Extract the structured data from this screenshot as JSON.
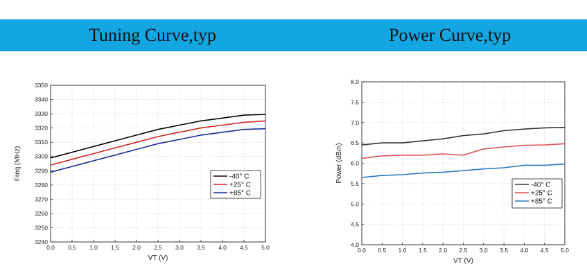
{
  "header": {
    "left_title": "Tuning Curve,typ",
    "right_title": "Power Curve,typ"
  },
  "chart_data": [
    {
      "type": "line",
      "title": "Tuning Curve,typ",
      "xlabel": "VT (V)",
      "ylabel": "Freq (MHz)",
      "xlim": [
        0.0,
        5.0
      ],
      "ylim": [
        3240,
        3350
      ],
      "xticks": [
        "0.0",
        "0.5",
        "1.0",
        "1.5",
        "2.0",
        "2.5",
        "3.0",
        "3.5",
        "4.0",
        "4.5",
        "5.0"
      ],
      "yticks": [
        "3240",
        "3250",
        "3260",
        "3270",
        "3280",
        "3290",
        "3300",
        "3310",
        "3320",
        "3330",
        "3340",
        "3350"
      ],
      "grid": true,
      "legend_position": "right",
      "x": [
        0.0,
        0.5,
        1.0,
        1.5,
        2.0,
        2.5,
        3.0,
        3.5,
        4.0,
        4.5,
        5.0
      ],
      "series": [
        {
          "name": "-40° C",
          "color": "#000000",
          "values": [
            3299,
            3303,
            3307,
            3311,
            3315,
            3319,
            3322,
            3325,
            3327,
            3329,
            3329.5
          ]
        },
        {
          "name": "+25° C",
          "color": "#d42424",
          "values": [
            3294,
            3298,
            3302,
            3306,
            3310,
            3314,
            3317,
            3320,
            3322,
            3324,
            3325
          ]
        },
        {
          "name": "+85° C",
          "color": "#1a2a9c",
          "values": [
            3289,
            3293,
            3297,
            3301,
            3305,
            3309,
            3312,
            3315,
            3317,
            3319,
            3319.5
          ]
        }
      ]
    },
    {
      "type": "line",
      "title": "Power Curve,typ",
      "xlabel": "VT (V)",
      "ylabel": "Power (dBm)",
      "xlim": [
        0.0,
        5.0
      ],
      "ylim": [
        4.0,
        8.0
      ],
      "xticks": [
        "0.0",
        "0.5",
        "1.0",
        "1.5",
        "2.0",
        "2.5",
        "3.0",
        "3.5",
        "4.0",
        "4.5",
        "5.0"
      ],
      "yticks": [
        "4.0",
        "4.5",
        "5.0",
        "5.5",
        "6.0",
        "6.5",
        "7.0",
        "7.5",
        "8.0"
      ],
      "grid": true,
      "legend_position": "bottom-right",
      "x": [
        0.0,
        0.5,
        1.0,
        1.5,
        2.0,
        2.5,
        3.0,
        3.5,
        4.0,
        4.5,
        5.0
      ],
      "series": [
        {
          "name": "-40° C",
          "color": "#333333",
          "values": [
            6.45,
            6.5,
            6.5,
            6.55,
            6.6,
            6.68,
            6.72,
            6.8,
            6.84,
            6.87,
            6.88
          ]
        },
        {
          "name": "+25° C",
          "color": "#e05050",
          "values": [
            6.12,
            6.18,
            6.2,
            6.2,
            6.23,
            6.2,
            6.35,
            6.4,
            6.44,
            6.45,
            6.48
          ]
        },
        {
          "name": "+85° C",
          "color": "#2a78c2",
          "values": [
            5.65,
            5.7,
            5.72,
            5.76,
            5.78,
            5.82,
            5.86,
            5.89,
            5.95,
            5.95,
            5.98
          ]
        }
      ]
    }
  ]
}
